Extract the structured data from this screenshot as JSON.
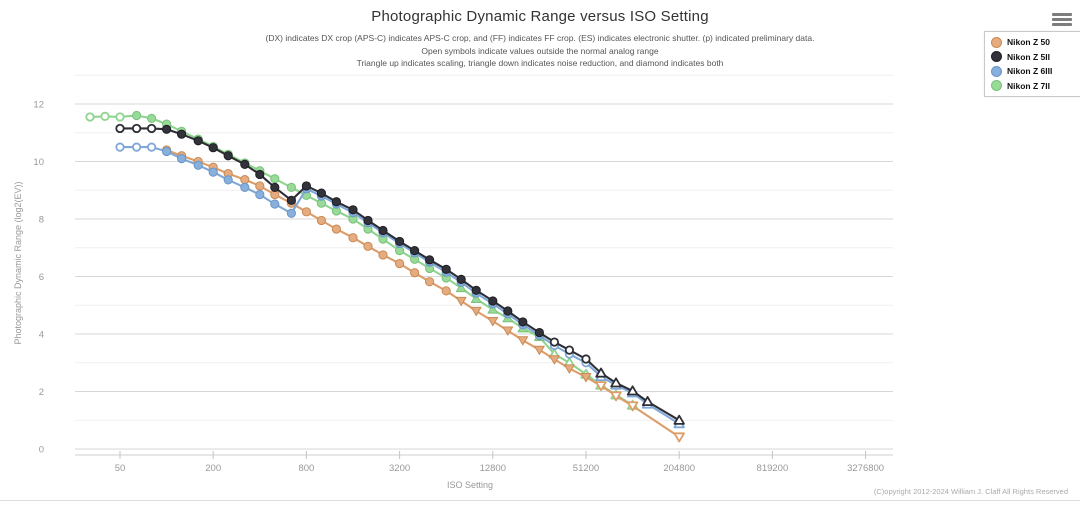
{
  "page": {
    "title": "Photographic Dynamic Range versus ISO Setting",
    "subtitle_lines": [
      "(DX) indicates DX crop (APS-C) indicates APS-C crop, and (FF) indicates FF crop. (ES) indicates electronic shutter. (p) indicated preliminary data.",
      "Open symbols indicate values outside the normal analog range",
      "Triangle up indicates scaling, triangle down indicates noise reduction, and diamond indicates both"
    ],
    "copyright": "(C)opyright 2012-2024 William J. Claff All Rights Reserved",
    "menu_icon": "hamburger-icon"
  },
  "chart_data": {
    "type": "line",
    "title": "Photographic Dynamic Range versus ISO Setting",
    "xlabel": "ISO Setting",
    "ylabel": "Photographic Dynamic Range (log2(EV))",
    "x_scale": "log2",
    "x_ticks": [
      50,
      200,
      800,
      3200,
      12800,
      51200,
      204800,
      819200,
      3276800
    ],
    "y_ticks": [
      0,
      2,
      4,
      6,
      8,
      10,
      12
    ],
    "xlim": [
      25,
      5000000
    ],
    "ylim": [
      0,
      13
    ],
    "grid": "horizontal major at even EV, minor at odd EV, no vertical gridlines",
    "legend_position": "top-right",
    "symbol_key": {
      "c": "filled circle (normal analog range)",
      "o": "open circle (outside normal analog range)",
      "t": "filled triangle-up (scaling)",
      "ot": "open triangle-up (scaling, outside analog range)",
      "d": "filled triangle-down (noise reduction)",
      "od": "open triangle-down (noise reduction, outside analog range)"
    },
    "series": [
      {
        "name": "Nikon Z 7II",
        "color": "#8fd48f",
        "marker_fill": "#98da98",
        "marker_stroke": "#79c279",
        "points": [
          {
            "iso": 32,
            "ev": 11.55,
            "sym": "o"
          },
          {
            "iso": 40,
            "ev": 11.57,
            "sym": "o"
          },
          {
            "iso": 50,
            "ev": 11.55,
            "sym": "o"
          },
          {
            "iso": 64,
            "ev": 11.6,
            "sym": "c"
          },
          {
            "iso": 80,
            "ev": 11.5,
            "sym": "c"
          },
          {
            "iso": 100,
            "ev": 11.3,
            "sym": "c"
          },
          {
            "iso": 125,
            "ev": 11.05,
            "sym": "c"
          },
          {
            "iso": 160,
            "ev": 10.78,
            "sym": "c"
          },
          {
            "iso": 200,
            "ev": 10.52,
            "sym": "c"
          },
          {
            "iso": 250,
            "ev": 10.25,
            "sym": "c"
          },
          {
            "iso": 320,
            "ev": 9.95,
            "sym": "c"
          },
          {
            "iso": 400,
            "ev": 9.68,
            "sym": "c"
          },
          {
            "iso": 500,
            "ev": 9.4,
            "sym": "c"
          },
          {
            "iso": 640,
            "ev": 9.1,
            "sym": "c"
          },
          {
            "iso": 800,
            "ev": 8.82,
            "sym": "c"
          },
          {
            "iso": 1000,
            "ev": 8.55,
            "sym": "c"
          },
          {
            "iso": 1250,
            "ev": 8.28,
            "sym": "c"
          },
          {
            "iso": 1600,
            "ev": 8.0,
            "sym": "c"
          },
          {
            "iso": 2000,
            "ev": 7.65,
            "sym": "c"
          },
          {
            "iso": 2500,
            "ev": 7.3,
            "sym": "c"
          },
          {
            "iso": 3200,
            "ev": 6.9,
            "sym": "c"
          },
          {
            "iso": 4000,
            "ev": 6.6,
            "sym": "c"
          },
          {
            "iso": 5000,
            "ev": 6.28,
            "sym": "c"
          },
          {
            "iso": 6400,
            "ev": 5.95,
            "sym": "c"
          },
          {
            "iso": 8000,
            "ev": 5.6,
            "sym": "t"
          },
          {
            "iso": 10000,
            "ev": 5.22,
            "sym": "t"
          },
          {
            "iso": 12800,
            "ev": 4.85,
            "sym": "t"
          },
          {
            "iso": 16000,
            "ev": 4.55,
            "sym": "t"
          },
          {
            "iso": 20000,
            "ev": 4.2,
            "sym": "t"
          },
          {
            "iso": 25600,
            "ev": 3.9,
            "sym": "t"
          },
          {
            "iso": 32000,
            "ev": 3.3,
            "sym": "ot"
          },
          {
            "iso": 40000,
            "ev": 3.0,
            "sym": "ot"
          },
          {
            "iso": 51200,
            "ev": 2.6,
            "sym": "ot"
          },
          {
            "iso": 64000,
            "ev": 2.22,
            "sym": "ot"
          },
          {
            "iso": 80000,
            "ev": 1.88,
            "sym": "ot"
          },
          {
            "iso": 102400,
            "ev": 1.52,
            "sym": "ot"
          }
        ]
      },
      {
        "name": "Nikon Z 50",
        "color": "#dd9d68",
        "marker_fill": "#e5ac80",
        "marker_stroke": "#c98a55",
        "points": [
          {
            "iso": 100,
            "ev": 10.4,
            "sym": "c"
          },
          {
            "iso": 125,
            "ev": 10.2,
            "sym": "c"
          },
          {
            "iso": 160,
            "ev": 10.0,
            "sym": "c"
          },
          {
            "iso": 200,
            "ev": 9.8,
            "sym": "c"
          },
          {
            "iso": 250,
            "ev": 9.58,
            "sym": "c"
          },
          {
            "iso": 320,
            "ev": 9.37,
            "sym": "c"
          },
          {
            "iso": 400,
            "ev": 9.15,
            "sym": "c"
          },
          {
            "iso": 500,
            "ev": 8.85,
            "sym": "c"
          },
          {
            "iso": 640,
            "ev": 8.55,
            "sym": "c"
          },
          {
            "iso": 800,
            "ev": 8.25,
            "sym": "c"
          },
          {
            "iso": 1000,
            "ev": 7.95,
            "sym": "c"
          },
          {
            "iso": 1250,
            "ev": 7.65,
            "sym": "c"
          },
          {
            "iso": 1600,
            "ev": 7.35,
            "sym": "c"
          },
          {
            "iso": 2000,
            "ev": 7.05,
            "sym": "c"
          },
          {
            "iso": 2500,
            "ev": 6.75,
            "sym": "c"
          },
          {
            "iso": 3200,
            "ev": 6.45,
            "sym": "c"
          },
          {
            "iso": 4000,
            "ev": 6.13,
            "sym": "c"
          },
          {
            "iso": 5000,
            "ev": 5.82,
            "sym": "c"
          },
          {
            "iso": 6400,
            "ev": 5.5,
            "sym": "c"
          },
          {
            "iso": 8000,
            "ev": 5.15,
            "sym": "d"
          },
          {
            "iso": 10000,
            "ev": 4.8,
            "sym": "d"
          },
          {
            "iso": 12800,
            "ev": 4.45,
            "sym": "d"
          },
          {
            "iso": 16000,
            "ev": 4.12,
            "sym": "d"
          },
          {
            "iso": 20000,
            "ev": 3.78,
            "sym": "d"
          },
          {
            "iso": 25600,
            "ev": 3.45,
            "sym": "d"
          },
          {
            "iso": 32000,
            "ev": 3.12,
            "sym": "d"
          },
          {
            "iso": 40000,
            "ev": 2.8,
            "sym": "d"
          },
          {
            "iso": 51200,
            "ev": 2.5,
            "sym": "d"
          },
          {
            "iso": 64000,
            "ev": 2.2,
            "sym": "od"
          },
          {
            "iso": 80000,
            "ev": 1.85,
            "sym": "od"
          },
          {
            "iso": 102400,
            "ev": 1.5,
            "sym": "od"
          },
          {
            "iso": 204800,
            "ev": 0.42,
            "sym": "od"
          }
        ]
      },
      {
        "name": "Nikon Z 6III",
        "color": "#7fa8d8",
        "marker_fill": "#88b0dd",
        "marker_stroke": "#6a95c5",
        "points": [
          {
            "iso": 50,
            "ev": 10.5,
            "sym": "o"
          },
          {
            "iso": 64,
            "ev": 10.5,
            "sym": "o"
          },
          {
            "iso": 80,
            "ev": 10.5,
            "sym": "o"
          },
          {
            "iso": 100,
            "ev": 10.35,
            "sym": "c"
          },
          {
            "iso": 125,
            "ev": 10.1,
            "sym": "c"
          },
          {
            "iso": 160,
            "ev": 9.87,
            "sym": "c"
          },
          {
            "iso": 200,
            "ev": 9.63,
            "sym": "c"
          },
          {
            "iso": 250,
            "ev": 9.36,
            "sym": "c"
          },
          {
            "iso": 320,
            "ev": 9.1,
            "sym": "c"
          },
          {
            "iso": 400,
            "ev": 8.85,
            "sym": "c"
          },
          {
            "iso": 500,
            "ev": 8.52,
            "sym": "c"
          },
          {
            "iso": 640,
            "ev": 8.2,
            "sym": "c"
          },
          {
            "iso": 800,
            "ev": 9.05,
            "sym": "c"
          },
          {
            "iso": 1000,
            "ev": 8.8,
            "sym": "c"
          },
          {
            "iso": 1250,
            "ev": 8.52,
            "sym": "c"
          },
          {
            "iso": 1600,
            "ev": 8.22,
            "sym": "c"
          },
          {
            "iso": 2000,
            "ev": 7.87,
            "sym": "c"
          },
          {
            "iso": 2500,
            "ev": 7.52,
            "sym": "c"
          },
          {
            "iso": 3200,
            "ev": 7.15,
            "sym": "c"
          },
          {
            "iso": 4000,
            "ev": 6.82,
            "sym": "c"
          },
          {
            "iso": 5000,
            "ev": 6.5,
            "sym": "c"
          },
          {
            "iso": 6400,
            "ev": 6.15,
            "sym": "c"
          },
          {
            "iso": 8000,
            "ev": 5.8,
            "sym": "c"
          },
          {
            "iso": 10000,
            "ev": 5.42,
            "sym": "c"
          },
          {
            "iso": 12800,
            "ev": 5.05,
            "sym": "c"
          },
          {
            "iso": 16000,
            "ev": 4.7,
            "sym": "c"
          },
          {
            "iso": 20000,
            "ev": 4.32,
            "sym": "c"
          },
          {
            "iso": 25600,
            "ev": 3.95,
            "sym": "c"
          },
          {
            "iso": 32000,
            "ev": 3.6,
            "sym": "o"
          },
          {
            "iso": 40000,
            "ev": 3.3,
            "sym": "o"
          },
          {
            "iso": 51200,
            "ev": 3.0,
            "sym": "o"
          },
          {
            "iso": 64000,
            "ev": 2.52,
            "sym": "ot"
          },
          {
            "iso": 80000,
            "ev": 2.22,
            "sym": "ot"
          },
          {
            "iso": 102400,
            "ev": 1.95,
            "sym": "ot"
          },
          {
            "iso": 128000,
            "ev": 1.56,
            "sym": "ot"
          },
          {
            "iso": 204800,
            "ev": 0.88,
            "sym": "ot"
          }
        ]
      },
      {
        "name": "Nikon Z 5II",
        "color": "#2e2e36",
        "marker_fill": "#32323a",
        "marker_stroke": "#1e1e24",
        "points": [
          {
            "iso": 50,
            "ev": 11.15,
            "sym": "o"
          },
          {
            "iso": 64,
            "ev": 11.15,
            "sym": "o"
          },
          {
            "iso": 80,
            "ev": 11.15,
            "sym": "o"
          },
          {
            "iso": 100,
            "ev": 11.12,
            "sym": "c"
          },
          {
            "iso": 125,
            "ev": 10.95,
            "sym": "c"
          },
          {
            "iso": 160,
            "ev": 10.72,
            "sym": "c"
          },
          {
            "iso": 200,
            "ev": 10.48,
            "sym": "c"
          },
          {
            "iso": 250,
            "ev": 10.2,
            "sym": "c"
          },
          {
            "iso": 320,
            "ev": 9.9,
            "sym": "c"
          },
          {
            "iso": 400,
            "ev": 9.55,
            "sym": "c"
          },
          {
            "iso": 500,
            "ev": 9.1,
            "sym": "c"
          },
          {
            "iso": 640,
            "ev": 8.65,
            "sym": "c"
          },
          {
            "iso": 800,
            "ev": 9.15,
            "sym": "c"
          },
          {
            "iso": 1000,
            "ev": 8.9,
            "sym": "c"
          },
          {
            "iso": 1250,
            "ev": 8.6,
            "sym": "c"
          },
          {
            "iso": 1600,
            "ev": 8.32,
            "sym": "c"
          },
          {
            "iso": 2000,
            "ev": 7.95,
            "sym": "c"
          },
          {
            "iso": 2500,
            "ev": 7.6,
            "sym": "c"
          },
          {
            "iso": 3200,
            "ev": 7.22,
            "sym": "c"
          },
          {
            "iso": 4000,
            "ev": 6.9,
            "sym": "c"
          },
          {
            "iso": 5000,
            "ev": 6.58,
            "sym": "c"
          },
          {
            "iso": 6400,
            "ev": 6.25,
            "sym": "c"
          },
          {
            "iso": 8000,
            "ev": 5.9,
            "sym": "c"
          },
          {
            "iso": 10000,
            "ev": 5.52,
            "sym": "c"
          },
          {
            "iso": 12800,
            "ev": 5.15,
            "sym": "c"
          },
          {
            "iso": 16000,
            "ev": 4.8,
            "sym": "c"
          },
          {
            "iso": 20000,
            "ev": 4.42,
            "sym": "c"
          },
          {
            "iso": 25600,
            "ev": 4.05,
            "sym": "c"
          },
          {
            "iso": 32000,
            "ev": 3.72,
            "sym": "o"
          },
          {
            "iso": 40000,
            "ev": 3.44,
            "sym": "o"
          },
          {
            "iso": 51200,
            "ev": 3.13,
            "sym": "o"
          },
          {
            "iso": 64000,
            "ev": 2.64,
            "sym": "ot"
          },
          {
            "iso": 80000,
            "ev": 2.3,
            "sym": "ot"
          },
          {
            "iso": 102400,
            "ev": 2.02,
            "sym": "ot"
          },
          {
            "iso": 128000,
            "ev": 1.65,
            "sym": "ot"
          },
          {
            "iso": 204800,
            "ev": 1.0,
            "sym": "ot"
          }
        ]
      }
    ],
    "legend_order": [
      "Nikon Z 50",
      "Nikon Z 5II",
      "Nikon Z 6III",
      "Nikon Z 7II"
    ]
  }
}
